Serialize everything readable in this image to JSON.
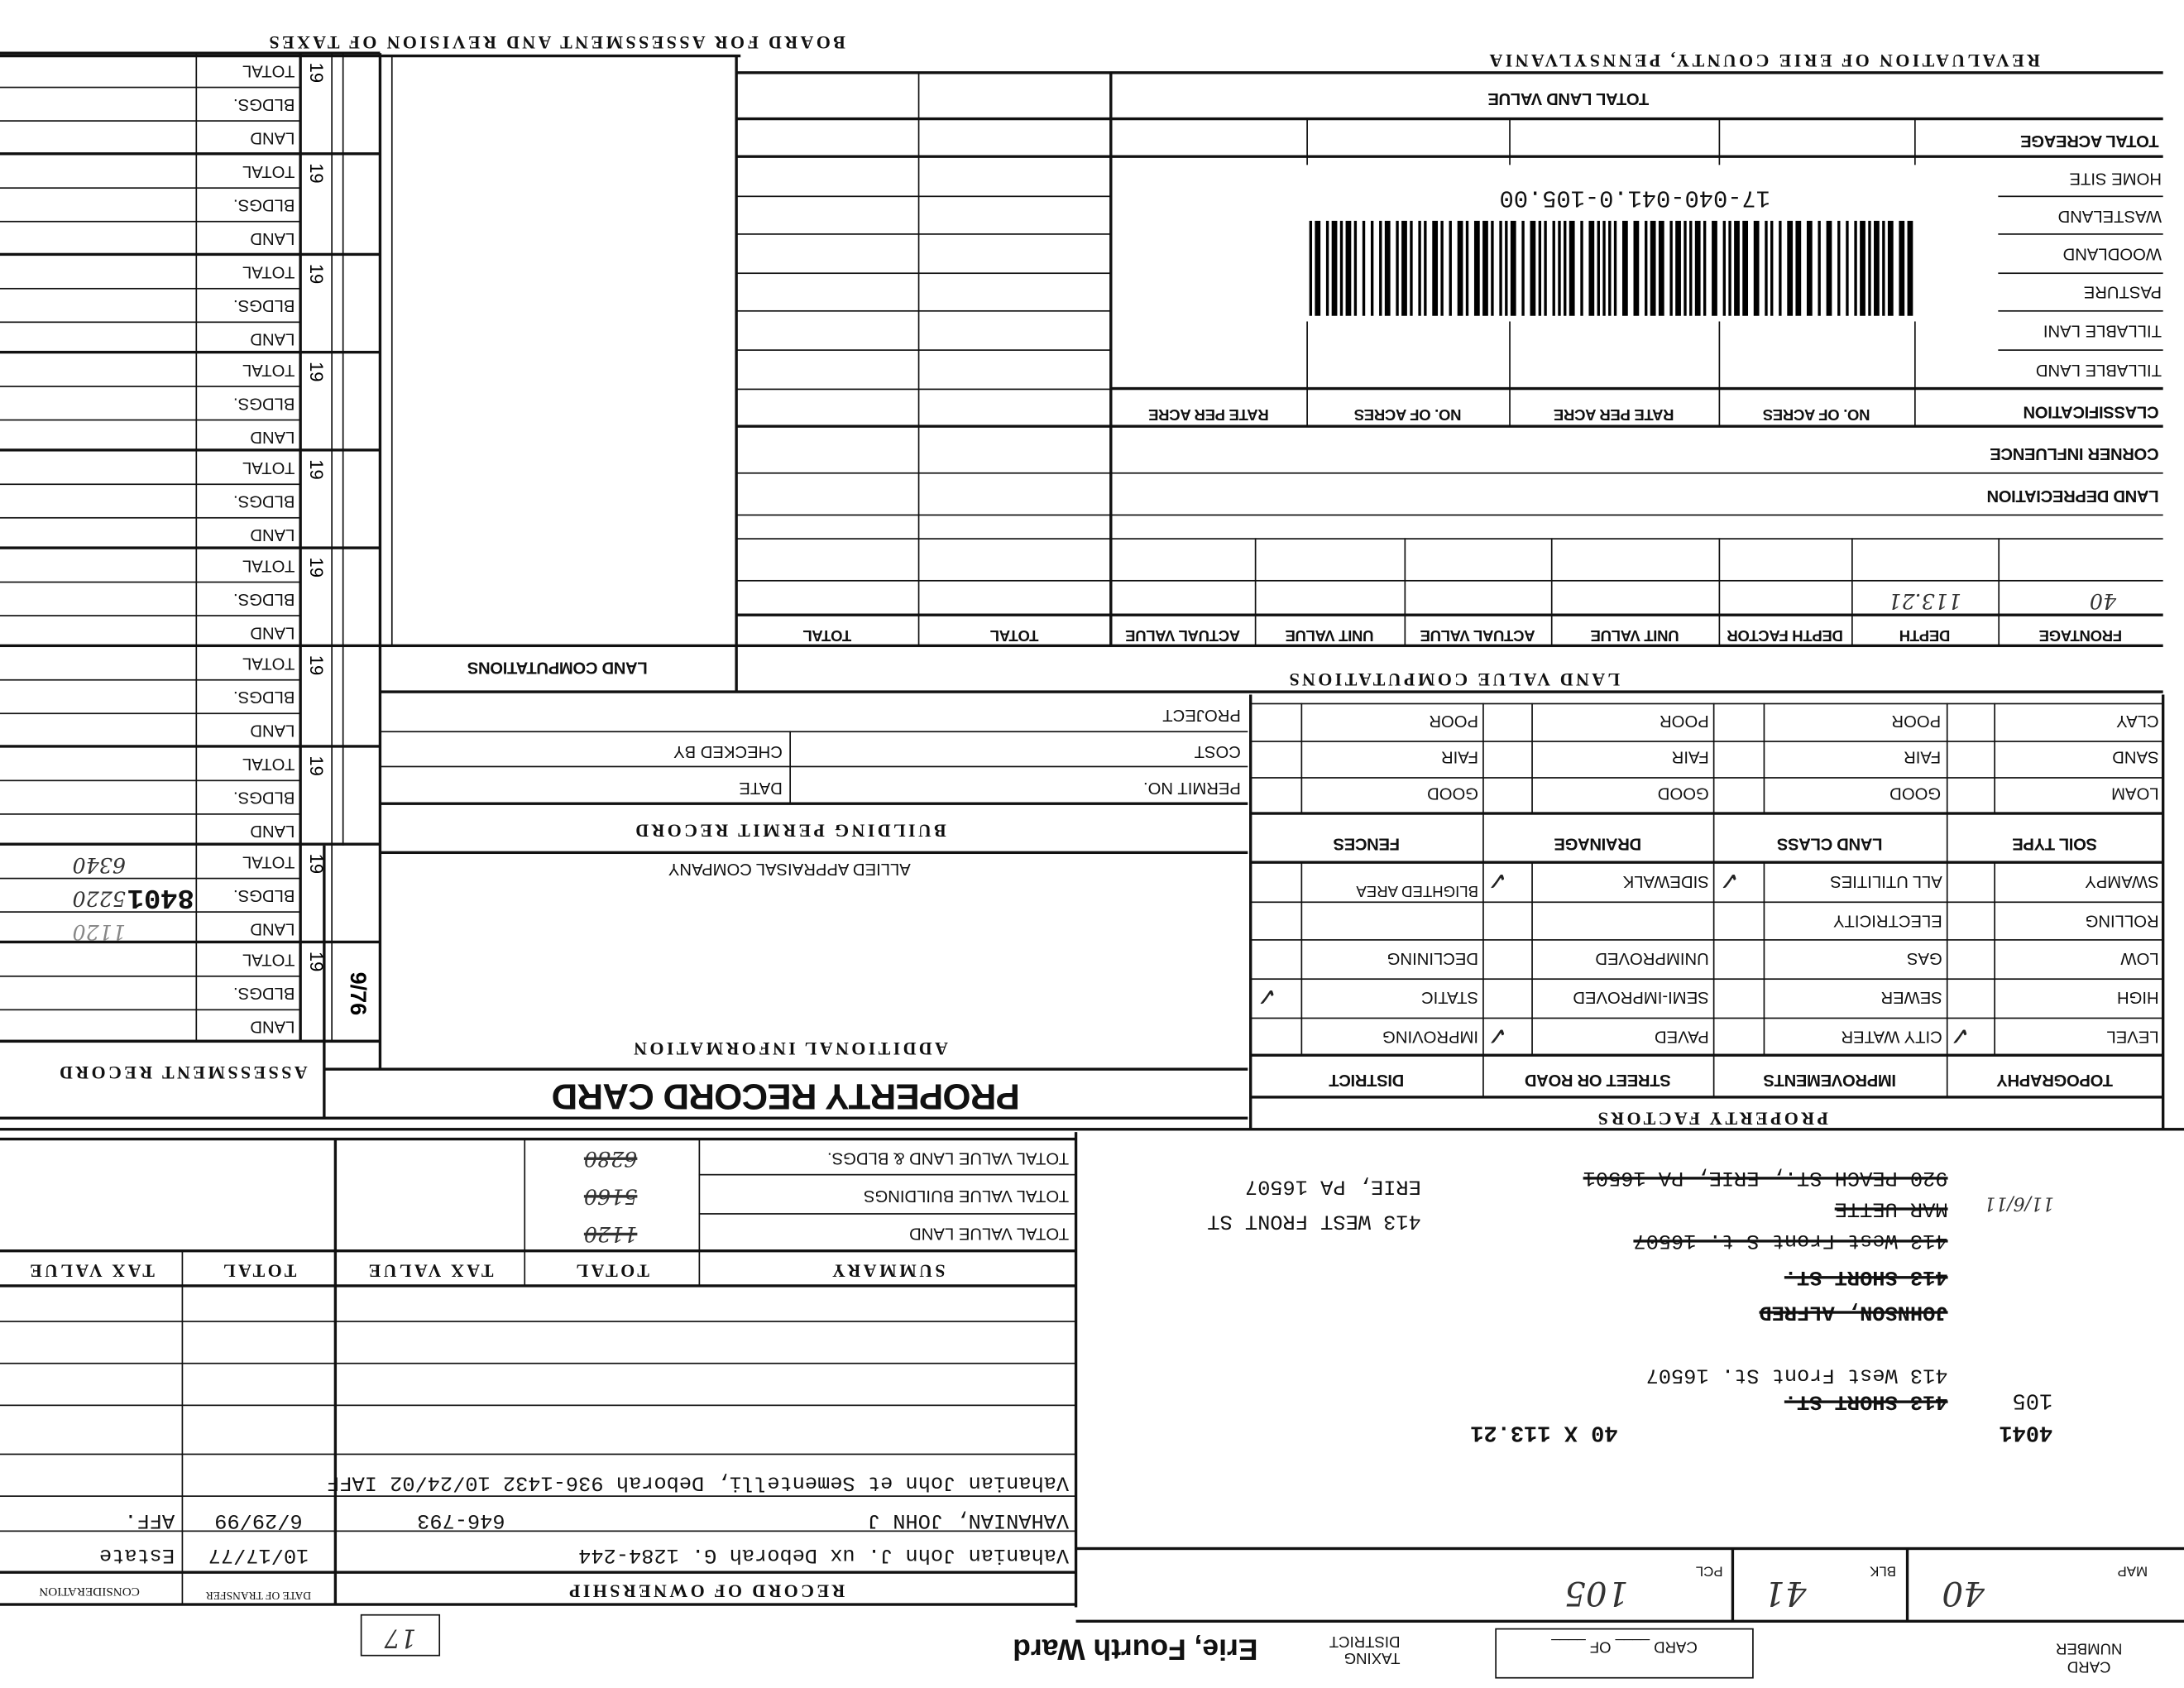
{
  "header": {
    "board": "BOARD FOR ASSESSMENT AND REVISION OF TAXES",
    "revaluation": "REVALUATION OF ERIE COUNTY, PENNSYLVANIA"
  },
  "assessment_record": {
    "title": "ASSESSMENT RECORD",
    "year_prefix": "19",
    "row_labels": [
      "TOTAL",
      "BLDGS.",
      "LAND"
    ],
    "entry": {
      "total": "6340",
      "bldgs": "5220",
      "land": "1120"
    },
    "stamps": [
      "8401",
      "9/76"
    ]
  },
  "land_value": {
    "total_land_value": "TOTAL LAND VALUE",
    "parcel_number": "17-040-041.0-105.00",
    "labels": [
      "TOTAL ACREAGE",
      "HOME SITE",
      "WASTELAND",
      "WOODLAND",
      "PASTURE",
      "TILLABLE LANI",
      "TILLABLE LAND",
      "CLASSIFICATION",
      "CORNER INFLUENCE",
      "LAND DEPRECIATION"
    ],
    "classification_headers": [
      "NO. OF ACRES",
      "RATE PER ACRE",
      "NO. OF ACRES",
      "RATE PER ACRE"
    ],
    "computation_headers": [
      "FRONTAGE",
      "DEPTH",
      "DEPTH FACTOR",
      "UNIT VALUE",
      "ACTUAL VALUE",
      "UNIT VALUE",
      "ACTUAL VALUE",
      "TOTAL",
      "TOTAL"
    ],
    "frontage": "40",
    "depth": "113.21",
    "land_computations": "LAND COMPUTATIONS",
    "land_value_computations": "LAND VALUE COMPUTATIONS"
  },
  "building_permit": {
    "title": "BUILDING PERMIT RECORD",
    "project": "PROJECT",
    "cost": "COST",
    "checked_by": "CHECKED BY",
    "permit_no": "PERMIT NO.",
    "date": "DATE"
  },
  "additional_info": {
    "company": "ALLIED APPRAISAL COMPANY",
    "title": "ADDITIONAL INFORMATION"
  },
  "card_title": "PROPERTY RECORD CARD",
  "property_factors": {
    "title": "PROPERTY FACTORS",
    "soil_type": "SOIL TYPE",
    "land_class": "LAND CLASS",
    "drainage": "DRAINAGE",
    "fences": "FENCES",
    "soils": [
      "CLAY",
      "SAND",
      "LOAM"
    ],
    "grades": [
      "POOR",
      "FAIR",
      "GOOD"
    ],
    "topography": "TOPOGRAPHY",
    "improvements": "IMPROVEMENTS",
    "street_or_road": "STREET OR ROAD",
    "district": "DISTRICT",
    "topography_items": [
      "SWAMPY",
      "ROLLING",
      "LOW",
      "HIGH",
      "LEVEL"
    ],
    "improvement_items": [
      "ALL UTILITIES",
      "ELECTRICITY",
      "GAS",
      "SEWER",
      "CITY WATER"
    ],
    "street_items": [
      "SIDEWALK",
      "",
      "UNIMPROVED",
      "SEMI-IMPROVED",
      "PAVED"
    ],
    "district_items": [
      "BLIGHTED AREA",
      "",
      "DECLINING",
      "STATIC",
      "IMPROVING"
    ],
    "checked": [
      "LEVEL",
      "ALL UTILITIES",
      "SIDEWALK",
      "PAVED",
      "STATIC"
    ]
  },
  "summary": {
    "title": "SUMMARY",
    "total": "TOTAL",
    "tax_value": "TAX VALUE",
    "rows": [
      "TOTAL VALUE LAND & BLDGS.",
      "TOTAL VALUE BUILDINGS",
      "TOTAL VALUE LAND"
    ],
    "values": [
      "6280",
      "5160",
      "1120"
    ]
  },
  "ownership": {
    "title": "RECORD OF OWNERSHIP",
    "date_of_transfer": "DATE OF TRANSFER",
    "consideration": "CONSIDERATION",
    "entries": [
      {
        "owner": "Vahanian John J. ux Deborah G. 1284-244",
        "date": "10/17/77",
        "consideration": "Estate"
      },
      {
        "owner": "VAHANIAN, JOHN J",
        "deed": "646-793",
        "date": "6/29/99",
        "consideration": "AFF."
      },
      {
        "line": "Vahanian John et Sementelli, Deborah 936-1432 10/24/02 IAFF"
      }
    ]
  },
  "footer": {
    "page_box": "17",
    "taxing_district_label": "TAXING DISTRICT",
    "taxing_district": "Erie, Fourth Ward",
    "card_of": "CARD ____ OF ____",
    "card_number": "CARD NUMBER"
  },
  "parcel": {
    "map_label": "MAP",
    "map": "40",
    "blk_label": "BLK",
    "blk": "41",
    "pcl_label": "PCL",
    "pcl": "105",
    "code": "4041",
    "lot": "105",
    "dimensions": "40 X 113.21",
    "addresses_struck": [
      "920 PEACH ST., ERIE, PA 16501",
      "MAR UETTE",
      "413 West Front S t. 16507",
      "413 SHORT ST.",
      "JOHNSON, ALFRED"
    ],
    "address_current": "413 West Front St. 16507",
    "address_old_struck": "413 SHORT ST.",
    "mailing_line1": "413 WEST FRONT ST",
    "mailing_line2": "ERIE, PA 16507",
    "handwritten_date": "11/6/11"
  }
}
